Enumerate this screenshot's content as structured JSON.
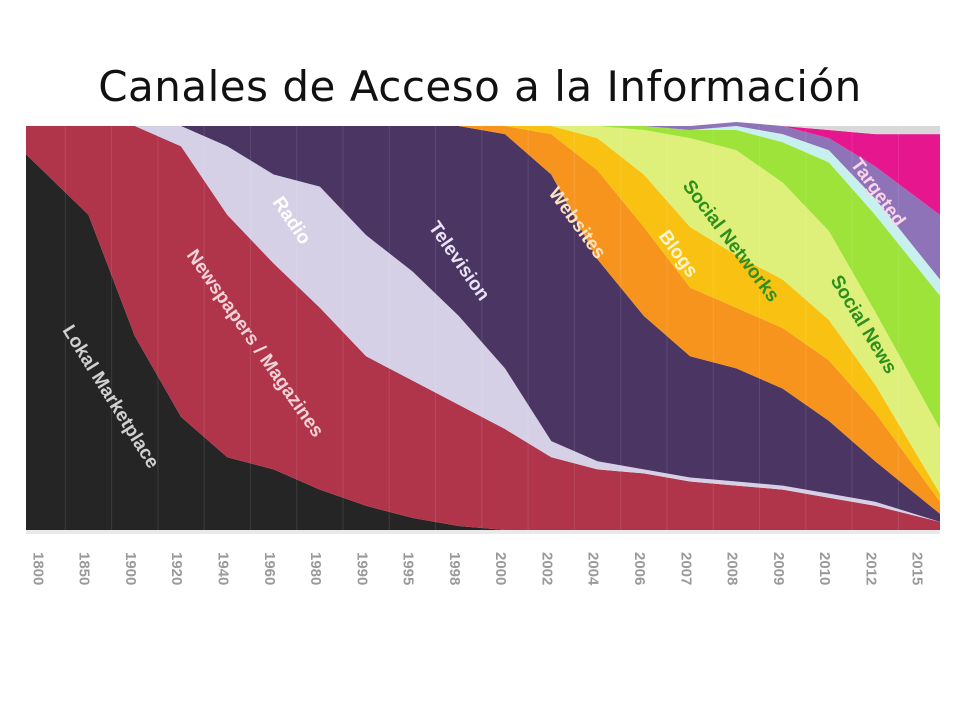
{
  "page": {
    "title": "Canales de Acceso a la Información"
  },
  "chart_data": {
    "type": "area",
    "stacked": true,
    "normalized": true,
    "title": "Canales de Acceso a la Información",
    "categories": [
      "1800",
      "1850",
      "1900",
      "1920",
      "1940",
      "1960",
      "1980",
      "1990",
      "1995",
      "1998",
      "2000",
      "2002",
      "2004",
      "2006",
      "2007",
      "2008",
      "2009",
      "2010",
      "2012",
      "2015"
    ],
    "ylim": [
      0,
      1
    ],
    "series": [
      {
        "name": "Lokal Marketplace",
        "color": "#252525",
        "text_color": "#d0d0d0",
        "values": [
          0.93,
          0.78,
          0.48,
          0.28,
          0.18,
          0.15,
          0.1,
          0.06,
          0.03,
          0.01,
          0.0,
          0.0,
          0.0,
          0.0,
          0.0,
          0.0,
          0.0,
          0.0,
          0.0,
          0.0
        ]
      },
      {
        "name": "Newspapers / Magazines",
        "color": "#b0354a",
        "text_color": "#f2d3d8",
        "values": [
          0.07,
          0.22,
          0.52,
          0.67,
          0.6,
          0.51,
          0.45,
          0.37,
          0.34,
          0.3,
          0.25,
          0.18,
          0.15,
          0.14,
          0.12,
          0.11,
          0.1,
          0.08,
          0.06,
          0.02
        ]
      },
      {
        "name": "Radio",
        "color": "#d6d0e6",
        "text_color": "#ffffff",
        "values": [
          0.0,
          0.0,
          0.0,
          0.05,
          0.17,
          0.22,
          0.3,
          0.3,
          0.27,
          0.22,
          0.15,
          0.04,
          0.02,
          0.01,
          0.01,
          0.01,
          0.01,
          0.01,
          0.01,
          0.0
        ]
      },
      {
        "name": "Television",
        "color": "#4a3563",
        "text_color": "#e8e2f2",
        "values": [
          0.0,
          0.0,
          0.0,
          0.0,
          0.05,
          0.12,
          0.15,
          0.27,
          0.36,
          0.47,
          0.58,
          0.66,
          0.5,
          0.38,
          0.3,
          0.28,
          0.24,
          0.18,
          0.1,
          0.02
        ]
      },
      {
        "name": "Websites",
        "color": "#f7941d",
        "text_color": "#fde3c0",
        "values": [
          0.0,
          0.0,
          0.0,
          0.0,
          0.0,
          0.0,
          0.0,
          0.0,
          0.0,
          0.0,
          0.02,
          0.1,
          0.22,
          0.22,
          0.17,
          0.15,
          0.15,
          0.15,
          0.12,
          0.03
        ]
      },
      {
        "name": "Blogs",
        "color": "#f9c213",
        "text_color": "#fff6d0",
        "values": [
          0.0,
          0.0,
          0.0,
          0.0,
          0.0,
          0.0,
          0.0,
          0.0,
          0.0,
          0.0,
          0.0,
          0.02,
          0.08,
          0.13,
          0.15,
          0.13,
          0.12,
          0.1,
          0.07,
          0.02
        ]
      },
      {
        "name": "Social Networks",
        "color": "#dff07a",
        "text_color": "#2e8f1e",
        "values": [
          0.0,
          0.0,
          0.0,
          0.0,
          0.0,
          0.0,
          0.0,
          0.0,
          0.0,
          0.0,
          0.0,
          0.0,
          0.03,
          0.11,
          0.22,
          0.26,
          0.24,
          0.22,
          0.18,
          0.16
        ]
      },
      {
        "name": "Social News",
        "color": "#9de33a",
        "text_color": "#2e8f1e",
        "values": [
          0.0,
          0.0,
          0.0,
          0.0,
          0.0,
          0.0,
          0.0,
          0.0,
          0.0,
          0.0,
          0.0,
          0.0,
          0.0,
          0.01,
          0.02,
          0.05,
          0.1,
          0.17,
          0.24,
          0.33
        ]
      },
      {
        "name": "",
        "color": "#c8f0ee",
        "text_color": "#000000",
        "values": [
          0.0,
          0.0,
          0.0,
          0.0,
          0.0,
          0.0,
          0.0,
          0.0,
          0.0,
          0.0,
          0.0,
          0.0,
          0.0,
          0.0,
          0.0,
          0.01,
          0.02,
          0.03,
          0.04,
          0.04
        ]
      },
      {
        "name": "",
        "color": "#8e73b8",
        "text_color": "#000000",
        "values": [
          0.0,
          0.0,
          0.0,
          0.0,
          0.0,
          0.0,
          0.0,
          0.0,
          0.0,
          0.0,
          0.0,
          0.0,
          0.0,
          0.0,
          0.01,
          0.01,
          0.02,
          0.03,
          0.08,
          0.16
        ]
      },
      {
        "name": "Targeted",
        "color": "#e6168e",
        "text_color": "#fbd3ea",
        "values": [
          0.0,
          0.0,
          0.0,
          0.0,
          0.0,
          0.0,
          0.0,
          0.0,
          0.0,
          0.0,
          0.0,
          0.0,
          0.0,
          0.0,
          0.0,
          0.0,
          0.0,
          0.02,
          0.08,
          0.2
        ]
      },
      {
        "name": "",
        "color": "#d8d8d8",
        "text_color": "#000000",
        "values": [
          0.0,
          0.0,
          0.0,
          0.0,
          0.0,
          0.0,
          0.0,
          0.0,
          0.0,
          0.0,
          0.0,
          0.0,
          0.0,
          0.0,
          0.0,
          0.0,
          0.0,
          0.01,
          0.02,
          0.02
        ]
      }
    ]
  }
}
